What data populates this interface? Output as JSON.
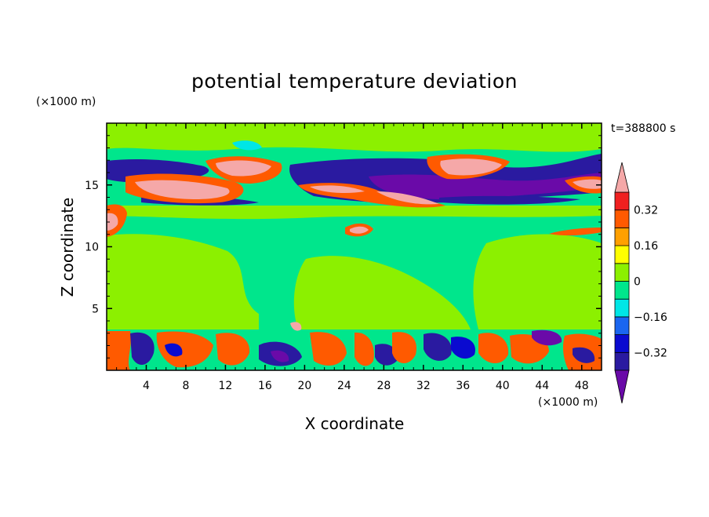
{
  "chart_data": {
    "type": "heatmap",
    "title": "potential temperature deviation",
    "xlabel": "X coordinate",
    "ylabel": "Z coordinate",
    "x_unit": "(×1000 m)",
    "y_unit": "(×1000 m)",
    "time_label": "t=388800 s",
    "xlim": [
      0,
      50
    ],
    "ylim": [
      0,
      20
    ],
    "x_ticks": [
      4,
      8,
      12,
      16,
      20,
      24,
      28,
      32,
      36,
      40,
      44,
      48
    ],
    "x_tick_labels": [
      "4",
      "8",
      "12",
      "16",
      "20",
      "24",
      "28",
      "32",
      "36",
      "40",
      "44",
      "48"
    ],
    "y_ticks": [
      5,
      10,
      15
    ],
    "y_tick_labels": [
      "5",
      "10",
      "15"
    ],
    "colorbar": {
      "levels": [
        -0.4,
        -0.32,
        -0.24,
        -0.16,
        -0.08,
        0,
        0.08,
        0.16,
        0.24,
        0.32,
        0.4
      ],
      "tick_values": [
        0.32,
        0.16,
        0,
        -0.16,
        -0.32
      ],
      "tick_labels": [
        "0.32",
        "0.16",
        "0",
        "−0.16",
        "−0.32"
      ],
      "colors": [
        "#6a0aa8",
        "#2a1aa0",
        "#0a0ad0",
        "#1a66f0",
        "#00e6e6",
        "#00e68c",
        "#8cf000",
        "#ffff00",
        "#ffa000",
        "#ff5a00",
        "#f02020",
        "#f5a8a8"
      ]
    },
    "legend_position": "right",
    "grid": false
  }
}
